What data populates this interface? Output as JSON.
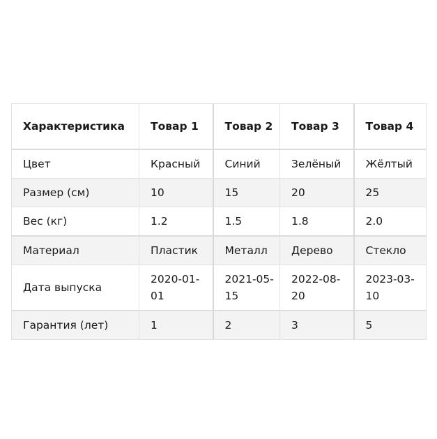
{
  "table": {
    "headers": [
      "Характеристика",
      "Товар 1",
      "Товар 2",
      "Товар 3",
      "Товар 4"
    ],
    "rows": [
      [
        "Цвет",
        "Красный",
        "Синий",
        "Зелёный",
        "Жёлтый"
      ],
      [
        "Размер (см)",
        "10",
        "15",
        "20",
        "25"
      ],
      [
        "Вес (кг)",
        "1.2",
        "1.5",
        "1.8",
        "2.0"
      ],
      [
        "Материал",
        "Пластик",
        "Металл",
        "Дерево",
        "Стекло"
      ],
      [
        "Дата выпуска",
        "2020-01-01",
        "2021-05-15",
        "2022-08-20",
        "2023-03-10"
      ],
      [
        "Гарантия (лет)",
        "1",
        "2",
        "3",
        "5"
      ]
    ]
  },
  "colors": {
    "border": "#e2e2e2",
    "alt_row": "#f3f3f3",
    "text": "#1a1a1a"
  }
}
